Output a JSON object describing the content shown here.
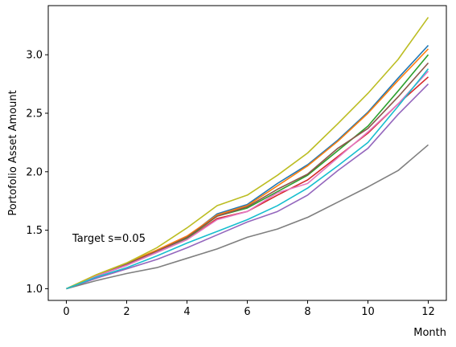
{
  "chart_data": {
    "type": "line",
    "title": "",
    "xlabel": "Month",
    "ylabel": "Portofolio Asset Amount",
    "xlim": [
      -0.6,
      12.6
    ],
    "ylim": [
      0.9,
      3.42
    ],
    "x_ticks": [
      0,
      2,
      4,
      6,
      8,
      10,
      12
    ],
    "y_ticks": [
      1.0,
      1.5,
      2.0,
      2.5,
      3.0
    ],
    "y_tick_labels": [
      "1.0",
      "1.5",
      "2.0",
      "2.5",
      "3.0"
    ],
    "x_tick_labels": [
      "0",
      "2",
      "4",
      "6",
      "8",
      "10",
      "12"
    ],
    "grid": false,
    "annotation": {
      "text": "Target s=0.05",
      "x": 0.2,
      "y": 1.4
    },
    "x": [
      0,
      1,
      2,
      3,
      4,
      5,
      6,
      7,
      8,
      9,
      10,
      11,
      12
    ],
    "series": [
      {
        "color": "#1f77b4",
        "values": [
          1.0,
          1.11,
          1.21,
          1.32,
          1.44,
          1.64,
          1.72,
          1.9,
          2.06,
          2.27,
          2.51,
          2.8,
          3.08
        ]
      },
      {
        "color": "#ff7f0e",
        "values": [
          1.0,
          1.12,
          1.22,
          1.33,
          1.45,
          1.63,
          1.71,
          1.88,
          2.05,
          2.26,
          2.5,
          2.78,
          3.05
        ]
      },
      {
        "color": "#2ca02c",
        "values": [
          1.0,
          1.11,
          1.21,
          1.32,
          1.43,
          1.62,
          1.69,
          1.83,
          1.97,
          2.18,
          2.39,
          2.69,
          3.0
        ]
      },
      {
        "color": "#d62728",
        "values": [
          1.0,
          1.11,
          1.2,
          1.31,
          1.42,
          1.6,
          1.66,
          1.8,
          1.93,
          2.13,
          2.33,
          2.58,
          2.81
        ]
      },
      {
        "color": "#9467bd",
        "values": [
          1.0,
          1.09,
          1.17,
          1.25,
          1.35,
          1.46,
          1.57,
          1.66,
          1.8,
          2.01,
          2.2,
          2.49,
          2.75
        ]
      },
      {
        "color": "#8c564b",
        "values": [
          1.0,
          1.11,
          1.21,
          1.32,
          1.44,
          1.62,
          1.7,
          1.85,
          1.98,
          2.2,
          2.37,
          2.64,
          2.93
        ]
      },
      {
        "color": "#e377c2",
        "values": [
          1.0,
          1.11,
          1.2,
          1.31,
          1.42,
          1.59,
          1.66,
          1.82,
          1.9,
          2.12,
          2.34,
          2.58,
          2.86
        ]
      },
      {
        "color": "#7f7f7f",
        "values": [
          1.0,
          1.07,
          1.13,
          1.18,
          1.26,
          1.34,
          1.44,
          1.51,
          1.61,
          1.74,
          1.87,
          2.01,
          2.23
        ]
      },
      {
        "color": "#bcbd22",
        "values": [
          1.0,
          1.12,
          1.22,
          1.35,
          1.52,
          1.71,
          1.8,
          1.97,
          2.16,
          2.41,
          2.67,
          2.96,
          3.32
        ]
      },
      {
        "color": "#17becf",
        "values": [
          1.0,
          1.1,
          1.18,
          1.28,
          1.39,
          1.49,
          1.59,
          1.71,
          1.86,
          2.05,
          2.25,
          2.56,
          2.88
        ]
      }
    ]
  }
}
